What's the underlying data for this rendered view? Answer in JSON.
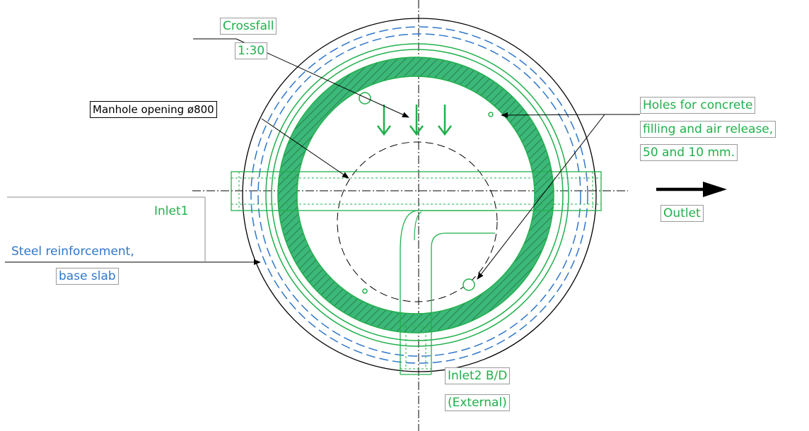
{
  "labels": {
    "crossfall": "Crossfall",
    "crossfall_value": "1:30",
    "manhole_opening": "Manhole opening ø800",
    "holes_line1": "Holes for concrete",
    "holes_line2": "filling and air release,",
    "holes_line3": "50 and 10 mm.",
    "inlet1": "Inlet1",
    "outlet": "Outlet",
    "steel_line1": "Steel reinforcement,",
    "steel_line2": "base slab",
    "inlet2_line1": "Inlet2 B/D",
    "inlet2_line2": "(External)"
  },
  "colors": {
    "green": "#21b04b",
    "green_fill": "#3cb878",
    "blue": "#2f77c9",
    "outline": "#000000"
  }
}
